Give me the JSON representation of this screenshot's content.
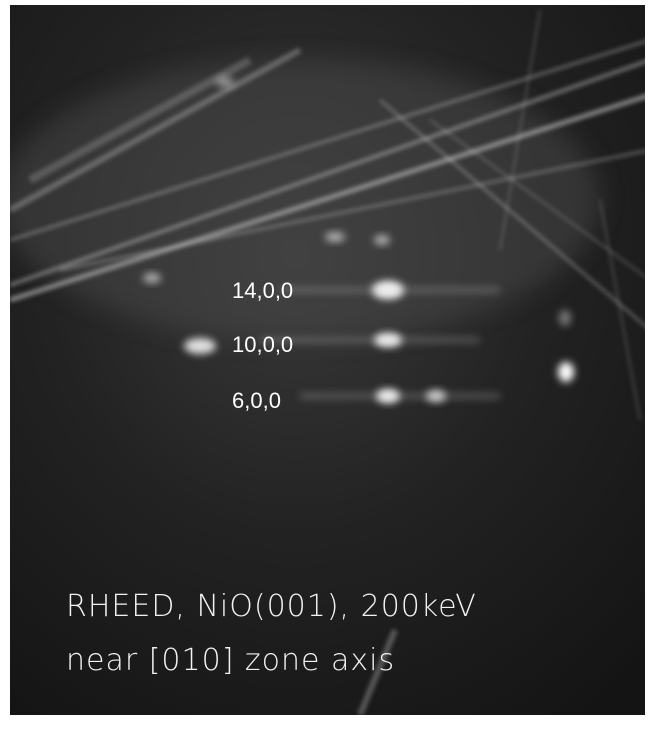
{
  "image": {
    "spot_labels": [
      "14,0,0",
      "10,0,0",
      "6,0,0"
    ],
    "caption": [
      "RHEED, NiO(001), 200keV",
      "near [010] zone axis"
    ]
  }
}
